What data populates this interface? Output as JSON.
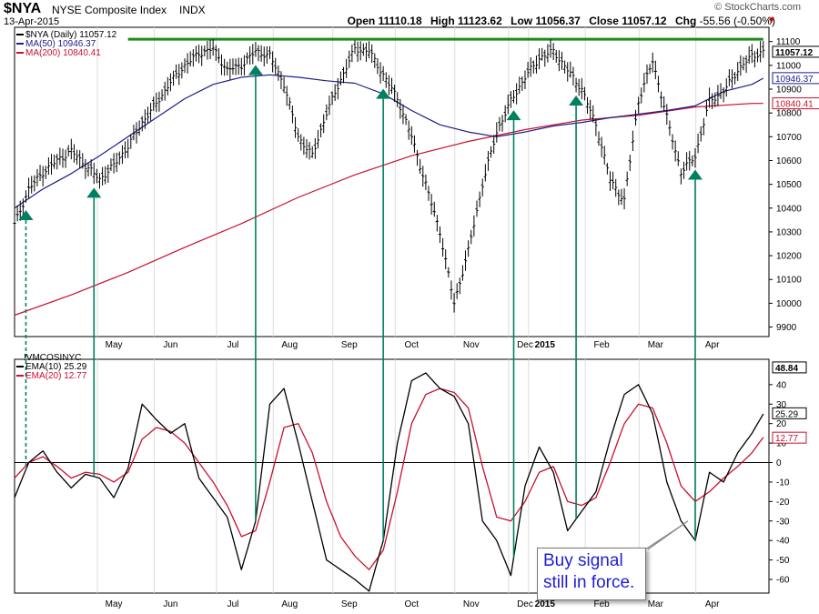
{
  "header": {
    "symbol": "$NYA",
    "name": "NYSE Composite Index",
    "type": "INDX",
    "date": "13-Apr-2015",
    "open_label": "Open",
    "open": "11110.18",
    "high_label": "High",
    "high": "11123.62",
    "low_label": "Low",
    "low": "11056.37",
    "close_label": "Close",
    "close": "11057.12",
    "chg_label": "Chg",
    "chg": "-55.56 (-0.50%)",
    "brand": "© StockCharts.com"
  },
  "annotation": {
    "line1": "Buy signal",
    "line2": "still in force."
  },
  "colors": {
    "price": "#000000",
    "ma50": "#1c1c8c",
    "ma200": "#c8102e",
    "ema10": "#000000",
    "ema20": "#c8102e",
    "signal": "#008060",
    "resistance": "#1d8a1d"
  },
  "chart_data": [
    {
      "type": "line",
      "panel": "price",
      "legend": "$NYA (Daily) 11057.12",
      "x_months": [
        "May",
        "Jun",
        "Jul",
        "Aug",
        "Sep",
        "Oct",
        "Nov",
        "Dec",
        "2015",
        "Feb",
        "Mar",
        "Apr"
      ],
      "y_ticks": [
        9900,
        10000,
        10100,
        10200,
        10300,
        10400,
        10500,
        10600,
        10700,
        10800,
        10900,
        11000,
        11100
      ],
      "ylim": [
        9860,
        11160
      ],
      "resistance_level": 11110,
      "last_value_label": "11057.12",
      "series": [
        {
          "name": "$NYA (Daily) 11057.12",
          "style": "ohlc",
          "x": [
            0,
            5,
            10,
            15,
            20,
            25,
            30,
            35,
            40,
            45,
            50,
            55,
            60,
            65,
            70,
            75,
            80,
            85,
            90,
            95,
            100,
            105,
            110,
            115,
            120,
            125,
            130,
            135,
            140,
            145,
            150,
            155,
            160,
            165,
            170,
            175,
            180,
            185,
            190,
            195,
            200,
            205,
            210,
            215,
            220,
            225,
            230,
            235,
            240,
            245,
            250,
            255,
            260,
            264
          ],
          "values": [
            10330,
            10480,
            10550,
            10600,
            10640,
            10580,
            10520,
            10580,
            10660,
            10760,
            10840,
            10930,
            11000,
            11050,
            11070,
            10980,
            11000,
            11060,
            11040,
            10920,
            10700,
            10620,
            10800,
            10940,
            11070,
            11060,
            10960,
            10860,
            10700,
            10500,
            10300,
            10000,
            10220,
            10500,
            10720,
            10850,
            10950,
            11030,
            11060,
            10980,
            10900,
            10750,
            10520,
            10430,
            10850,
            11020,
            10780,
            10550,
            10620,
            10850,
            10890,
            10980,
            11040,
            11057
          ]
        },
        {
          "name": "MA(50) 10946.37",
          "label": "MA(50) 10946.37",
          "end_label": "10946.37",
          "x": [
            0,
            10,
            20,
            30,
            40,
            50,
            60,
            70,
            80,
            90,
            100,
            110,
            120,
            130,
            140,
            150,
            160,
            170,
            180,
            190,
            200,
            210,
            220,
            230,
            240,
            250,
            260,
            264
          ],
          "values": [
            10400,
            10480,
            10545,
            10620,
            10700,
            10780,
            10860,
            10920,
            10950,
            10960,
            10950,
            10935,
            10925,
            10880,
            10810,
            10750,
            10720,
            10700,
            10720,
            10745,
            10760,
            10780,
            10795,
            10810,
            10830,
            10890,
            10920,
            10946
          ]
        },
        {
          "name": "MA(200) 10840.41",
          "label": "MA(200) 10840.41",
          "end_label": "10840.41",
          "x": [
            0,
            20,
            40,
            60,
            80,
            100,
            120,
            140,
            160,
            180,
            200,
            220,
            240,
            260,
            264
          ],
          "values": [
            9950,
            10035,
            10130,
            10235,
            10335,
            10445,
            10540,
            10620,
            10680,
            10730,
            10770,
            10790,
            10825,
            10840,
            10840
          ]
        }
      ],
      "buy_signal_x": [
        4,
        28,
        85,
        130,
        176,
        198,
        240
      ]
    },
    {
      "type": "line",
      "panel": "indicator",
      "legend": "!VMCOSINYC",
      "x_months": [
        "May",
        "Jun",
        "Jul",
        "Aug",
        "Sep",
        "Oct",
        "Nov",
        "Dec",
        "2015",
        "Feb",
        "Mar",
        "Apr"
      ],
      "y_ticks": [
        -60,
        -50,
        -40,
        -30,
        -20,
        -10,
        0,
        10,
        20,
        30,
        40
      ],
      "ylim": [
        -67,
        53
      ],
      "zero_line": 0,
      "max_label": "48.84",
      "series": [
        {
          "name": "EMA(10) 25.29",
          "label": "EMA(10) 25.29",
          "end_label": "25.29",
          "x": [
            0,
            5,
            10,
            15,
            20,
            25,
            30,
            35,
            40,
            45,
            50,
            55,
            60,
            65,
            70,
            75,
            80,
            85,
            90,
            95,
            100,
            105,
            110,
            115,
            120,
            125,
            130,
            135,
            140,
            145,
            150,
            155,
            160,
            165,
            170,
            175,
            180,
            185,
            190,
            195,
            200,
            205,
            210,
            215,
            220,
            225,
            230,
            235,
            240,
            245,
            250,
            255,
            260,
            264
          ],
          "values": [
            -18,
            0,
            6,
            -5,
            -13,
            -6,
            -8,
            -18,
            -3,
            30,
            22,
            15,
            20,
            -8,
            -18,
            -28,
            -55,
            -30,
            30,
            38,
            10,
            -20,
            -50,
            -55,
            -60,
            -66,
            -40,
            10,
            42,
            46,
            38,
            34,
            20,
            -30,
            -40,
            -58,
            -12,
            8,
            -5,
            -35,
            -25,
            -15,
            12,
            35,
            40,
            25,
            -10,
            -30,
            -40,
            -5,
            -10,
            5,
            15,
            25
          ]
        },
        {
          "name": "EMA(20) 12.77",
          "label": "EMA(20) 12.77",
          "end_label": "12.77",
          "x": [
            0,
            5,
            10,
            15,
            20,
            25,
            30,
            35,
            40,
            45,
            50,
            55,
            60,
            65,
            70,
            75,
            80,
            85,
            90,
            95,
            100,
            105,
            110,
            115,
            120,
            125,
            130,
            135,
            140,
            145,
            150,
            155,
            160,
            165,
            170,
            175,
            180,
            185,
            190,
            195,
            200,
            205,
            210,
            215,
            220,
            225,
            230,
            235,
            240,
            245,
            250,
            255,
            260,
            264
          ],
          "values": [
            -8,
            0,
            3,
            -2,
            -8,
            -5,
            -6,
            -10,
            -5,
            12,
            18,
            16,
            10,
            0,
            -10,
            -22,
            -38,
            -35,
            -10,
            18,
            20,
            5,
            -20,
            -38,
            -48,
            -55,
            -45,
            -15,
            20,
            35,
            38,
            36,
            28,
            -2,
            -28,
            -30,
            -20,
            -5,
            -2,
            -20,
            -22,
            -18,
            0,
            20,
            30,
            28,
            10,
            -12,
            -20,
            -15,
            -8,
            -2,
            5,
            13
          ]
        }
      ],
      "buy_signal_x": [
        4,
        28,
        85,
        130,
        176,
        198,
        240
      ]
    }
  ]
}
